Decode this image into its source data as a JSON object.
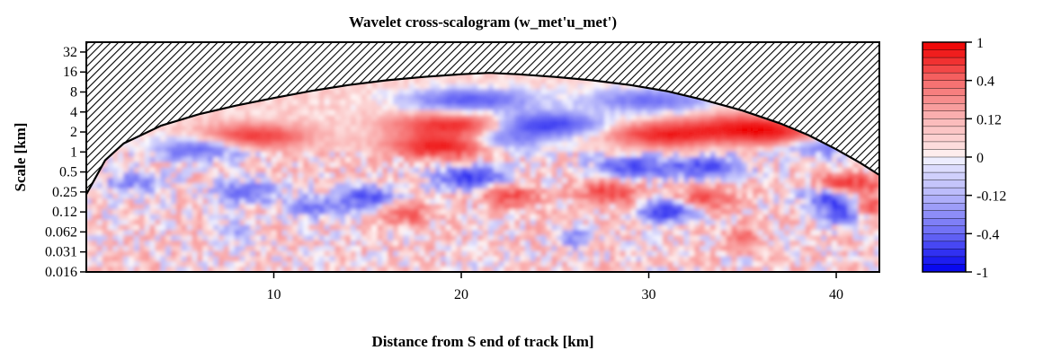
{
  "chart_data": {
    "type": "heatmap",
    "title": "Wavelet cross-scalogram (w_met'u_met')",
    "xlabel": "Distance from S end of track [km]",
    "ylabel": "Scale [km]",
    "xlim": [
      0,
      42.3
    ],
    "x_ticks": [
      10,
      20,
      30,
      40
    ],
    "x_tick_labels": [
      "10",
      "20",
      "30",
      "40"
    ],
    "y_scale": "log2",
    "ylim": [
      0.0156,
      45
    ],
    "y_ticks": [
      32,
      16,
      8,
      4,
      2,
      1,
      0.5,
      0.25,
      0.125,
      0.0625,
      0.03125,
      0.015625
    ],
    "y_tick_labels": [
      "32",
      "16",
      "8",
      "4",
      "2",
      "1",
      "0.5",
      "0.25",
      "0.12",
      "0.062",
      "0.031",
      "0.016"
    ],
    "cone_of_influence": {
      "x": [
        0,
        1,
        2,
        4,
        6,
        8,
        10,
        12,
        14,
        16,
        18,
        20,
        21.5,
        23,
        25,
        27,
        29,
        31,
        33,
        35,
        37,
        38.5,
        40,
        41.3,
        42.3
      ],
      "scale": [
        0.23,
        0.75,
        1.35,
        2.5,
        3.7,
        5.0,
        6.5,
        8.3,
        10.2,
        12.0,
        13.5,
        14.8,
        15.5,
        14.8,
        13.5,
        12.0,
        10.2,
        8.2,
        6.0,
        4.2,
        2.7,
        1.8,
        1.1,
        0.68,
        0.45
      ],
      "pattern": "hatched"
    },
    "features": [
      {
        "x": 19.0,
        "scale": 1.2,
        "value": 0.85
      },
      {
        "x": 19.5,
        "scale": 2.5,
        "value": 0.7
      },
      {
        "x": 9.0,
        "scale": 1.7,
        "value": 0.6
      },
      {
        "x": 31.0,
        "scale": 1.8,
        "value": 0.75
      },
      {
        "x": 35.0,
        "scale": 2.4,
        "value": 0.65
      },
      {
        "x": 37.0,
        "scale": 1.8,
        "value": 0.6
      },
      {
        "x": 24.5,
        "scale": 2.6,
        "value": -0.7
      },
      {
        "x": 22.0,
        "scale": 1.5,
        "value": -0.4
      },
      {
        "x": 20.5,
        "scale": 6.0,
        "value": -0.55
      },
      {
        "x": 30.0,
        "scale": 6.0,
        "value": -0.45
      },
      {
        "x": 33.0,
        "scale": 0.6,
        "value": -0.6
      },
      {
        "x": 29.0,
        "scale": 0.6,
        "value": -0.55
      },
      {
        "x": 20.5,
        "scale": 0.4,
        "value": -0.75
      },
      {
        "x": 6.0,
        "scale": 1.1,
        "value": -0.5
      },
      {
        "x": 40.0,
        "scale": 0.22,
        "value": -0.95
      },
      {
        "x": 40.5,
        "scale": 0.3,
        "value": 0.9
      },
      {
        "x": 41.5,
        "scale": 0.15,
        "value": 0.75
      },
      {
        "x": 40.5,
        "scale": 0.12,
        "value": -0.8
      },
      {
        "x": 31.0,
        "scale": 0.13,
        "value": -0.8
      },
      {
        "x": 28.0,
        "scale": 0.25,
        "value": 0.55
      },
      {
        "x": 33.0,
        "scale": 0.2,
        "value": 0.5
      },
      {
        "x": 15.0,
        "scale": 0.2,
        "value": -0.6
      },
      {
        "x": 12.0,
        "scale": 0.15,
        "value": -0.45
      },
      {
        "x": 8.5,
        "scale": 0.25,
        "value": -0.5
      },
      {
        "x": 2.5,
        "scale": 0.35,
        "value": -0.35
      },
      {
        "x": 17.0,
        "scale": 0.12,
        "value": 0.45
      },
      {
        "x": 22.5,
        "scale": 0.22,
        "value": 0.5
      },
      {
        "x": 39.0,
        "scale": 1.2,
        "value": -0.4
      },
      {
        "x": 40.5,
        "scale": 2.0,
        "value": -0.3
      },
      {
        "x": 35.0,
        "scale": 0.05,
        "value": 0.35
      },
      {
        "x": 8.0,
        "scale": 0.06,
        "value": -0.3
      },
      {
        "x": 26.0,
        "scale": 0.05,
        "value": -0.35
      }
    ],
    "colorbar": {
      "min": -1,
      "max": 1,
      "tick_values": [
        1,
        0.4,
        0.12,
        0,
        -0.12,
        -0.4,
        -1
      ],
      "tick_labels": [
        "1",
        "0.4",
        "0.12",
        "0",
        "-0.12",
        "-0.4",
        "-1"
      ],
      "negative_color": "#0000ee",
      "zero_color": "#ffffff",
      "positive_color": "#ee0000"
    }
  }
}
